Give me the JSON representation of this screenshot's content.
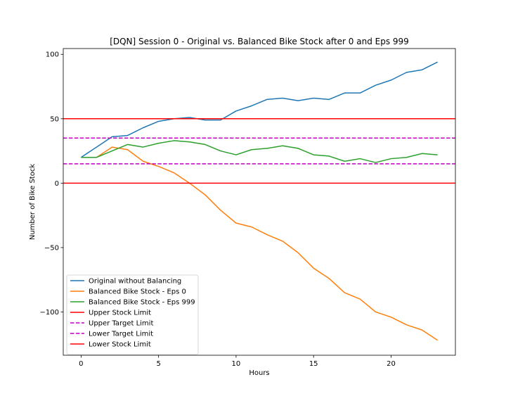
{
  "chart_data": {
    "type": "line",
    "title": "[DQN] Session 0 - Original vs. Balanced Bike Stock after 0 and Eps 999",
    "xlabel": "Hours",
    "ylabel": "Number of Bike Stock",
    "xlim": [
      -1.15,
      24.15
    ],
    "ylim": [
      -133.6,
      104.5
    ],
    "x_ticks": [
      0,
      5,
      10,
      15,
      20
    ],
    "y_ticks": [
      -100,
      -50,
      0,
      50,
      100
    ],
    "x_tick_labels": [
      "0",
      "5",
      "10",
      "15",
      "20"
    ],
    "y_tick_labels": [
      "−100",
      "−50",
      "0",
      "50",
      "100"
    ],
    "grid": false,
    "legend_position": "lower-left",
    "x": [
      0,
      1,
      2,
      3,
      4,
      5,
      6,
      7,
      8,
      9,
      10,
      11,
      12,
      13,
      14,
      15,
      16,
      17,
      18,
      19,
      20,
      21,
      22,
      23
    ],
    "series": [
      {
        "name": "Original without Balancing",
        "color": "#1f77b4",
        "values": [
          20,
          28,
          36,
          37,
          43,
          48,
          50,
          51,
          49,
          49,
          56,
          60,
          65,
          66,
          64,
          66,
          65,
          70,
          70,
          76,
          80,
          86,
          88,
          94
        ]
      },
      {
        "name": "Balanced Bike Stock - Eps 0",
        "color": "#ff7f0e",
        "values": [
          20,
          20,
          28,
          26,
          17,
          13,
          8,
          0,
          -9,
          -21,
          -31,
          -34,
          -40,
          -45,
          -54,
          -66,
          -74,
          -85,
          -90,
          -100,
          -104,
          -110,
          -114,
          -122
        ]
      },
      {
        "name": "Balanced Bike Stock - Eps 999",
        "color": "#2ca02c",
        "values": [
          20,
          20,
          25,
          30,
          28,
          31,
          33,
          32,
          30,
          25,
          22,
          26,
          27,
          29,
          27,
          22,
          21,
          17,
          19,
          16,
          19,
          20,
          23,
          22
        ]
      }
    ],
    "reference_lines": [
      {
        "name": "Upper Stock Limit",
        "y": 50,
        "color": "#ff0000",
        "style": "solid"
      },
      {
        "name": "Upper Target Limit",
        "y": 35,
        "color": "#c000c0",
        "style": "dashed"
      },
      {
        "name": "Lower Target Limit",
        "y": 15,
        "color": "#c000c0",
        "style": "dashed"
      },
      {
        "name": "Lower Stock Limit",
        "y": 0,
        "color": "#ff0000",
        "style": "solid"
      }
    ]
  }
}
